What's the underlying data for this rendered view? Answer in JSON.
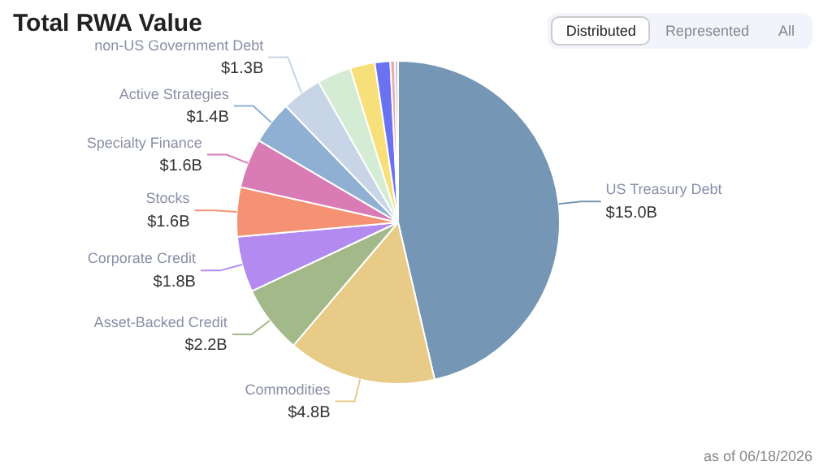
{
  "chart_data": {
    "type": "pie",
    "title": "Total RWA Value",
    "categories": [
      "US Treasury Debt",
      "Commodities",
      "Asset-Backed Credit",
      "Corporate Credit",
      "Stocks",
      "Specialty Finance",
      "Active Strategies",
      "non-US Government Debt",
      null,
      null,
      null,
      null,
      null
    ],
    "values": [
      15.0,
      4.8,
      2.2,
      1.8,
      1.6,
      1.6,
      1.4,
      1.3,
      1.1,
      0.8,
      0.5,
      0.15,
      0.1
    ],
    "value_labels": [
      "$15.0B",
      "$4.8B",
      "$2.2B",
      "$1.8B",
      "$1.6B",
      "$1.6B",
      "$1.4B",
      "$1.3B",
      null,
      null,
      null,
      null,
      null
    ],
    "colors": [
      "#7596b4",
      "#e8cb86",
      "#a3b98a",
      "#b38af0",
      "#f59273",
      "#d97bb5",
      "#8fb0d2",
      "#c7d5e6",
      "#d5ecd4",
      "#f7e07a",
      "#6a72f2",
      "#e8a8b8",
      "#c0c0c0"
    ],
    "annotations": [
      "Distributed",
      "Represented",
      "All",
      "as of 06/18/2026"
    ]
  }
}
